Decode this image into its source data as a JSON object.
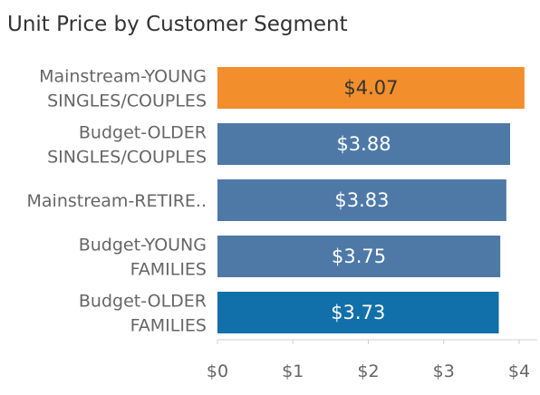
{
  "chart_data": {
    "type": "bar",
    "orientation": "horizontal",
    "title": "Unit Price by Customer Segment",
    "categories": [
      [
        "Mainstream-YOUNG",
        "SINGLES/COUPLES"
      ],
      [
        "Budget-OLDER",
        "SINGLES/COUPLES"
      ],
      [
        "Mainstream-RETIRE.."
      ],
      [
        "Budget-YOUNG",
        "FAMILIES"
      ],
      [
        "Budget-OLDER",
        "FAMILIES"
      ]
    ],
    "values": [
      4.07,
      3.88,
      3.83,
      3.75,
      3.73
    ],
    "data_labels": [
      "$4.07",
      "$3.88",
      "$3.83",
      "$3.75",
      "$3.73"
    ],
    "bar_colors": [
      "#f28e2b",
      "#4e79a7",
      "#4e79a7",
      "#4e79a7",
      "#1170aa"
    ],
    "label_colors": [
      "#333333",
      "#ffffff",
      "#ffffff",
      "#ffffff",
      "#ffffff"
    ],
    "x_ticks": [
      0,
      1,
      2,
      3,
      4
    ],
    "x_tick_labels": [
      "$0",
      "$1",
      "$2",
      "$3",
      "$4"
    ],
    "xlim": [
      0,
      4.15
    ],
    "grid": false,
    "legend": "none"
  }
}
